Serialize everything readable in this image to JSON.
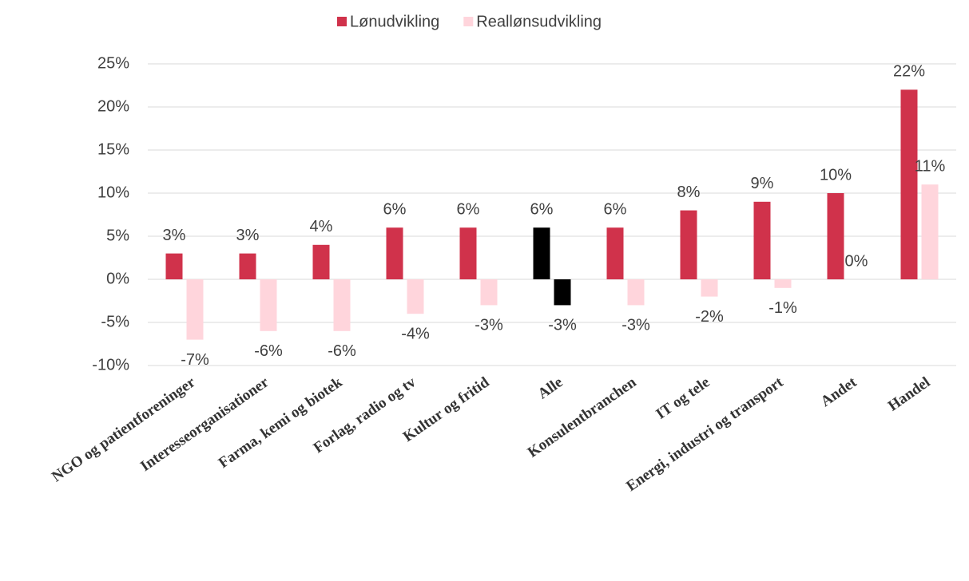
{
  "chart_data": {
    "type": "bar",
    "categories": [
      "NGO og patientforeninger",
      "Interesseorganisationer",
      "Farma, kemi og biotek",
      "Forlag, radio og tv",
      "Kultur og fritid",
      "Alle",
      "Konsulentbranchen",
      "IT og tele",
      "Energi, industri og transport",
      "Andet",
      "Handel"
    ],
    "series": [
      {
        "name": "Lønudvikling",
        "color": "#d0324b",
        "colors": [
          "#d0324b",
          "#d0324b",
          "#d0324b",
          "#d0324b",
          "#d0324b",
          "#000000",
          "#d0324b",
          "#d0324b",
          "#d0324b",
          "#d0324b",
          "#d0324b"
        ],
        "values": [
          3,
          3,
          4,
          6,
          6,
          6,
          6,
          8,
          9,
          10,
          22
        ],
        "value_labels": [
          "3%",
          "3%",
          "4%",
          "6%",
          "6%",
          "6%",
          "6%",
          "8%",
          "9%",
          "10%",
          "22%"
        ]
      },
      {
        "name": "Reallønsudvikling",
        "color": "#ffd5dc",
        "colors": [
          "#ffd5dc",
          "#ffd5dc",
          "#ffd5dc",
          "#ffd5dc",
          "#ffd5dc",
          "#000000",
          "#ffd5dc",
          "#ffd5dc",
          "#ffd5dc",
          "#ffd5dc",
          "#ffd5dc"
        ],
        "values": [
          -7,
          -6,
          -6,
          -4,
          -3,
          -3,
          -3,
          -2,
          -1,
          0,
          11
        ],
        "value_labels": [
          "-7%",
          "-6%",
          "-6%",
          "-4%",
          "-3%",
          "-3%",
          "-3%",
          "-2%",
          "-1%",
          "0%",
          "11%"
        ]
      }
    ],
    "ylim": [
      -10,
      25
    ],
    "yticks": [
      {
        "value": -10,
        "label": "-10%"
      },
      {
        "value": -5,
        "label": "-5%"
      },
      {
        "value": 0,
        "label": "0%"
      },
      {
        "value": 5,
        "label": "5%"
      },
      {
        "value": 10,
        "label": "10%"
      },
      {
        "value": 15,
        "label": "15%"
      },
      {
        "value": 20,
        "label": "20%"
      },
      {
        "value": 25,
        "label": "25%"
      }
    ],
    "grid": true,
    "legend": "top"
  }
}
